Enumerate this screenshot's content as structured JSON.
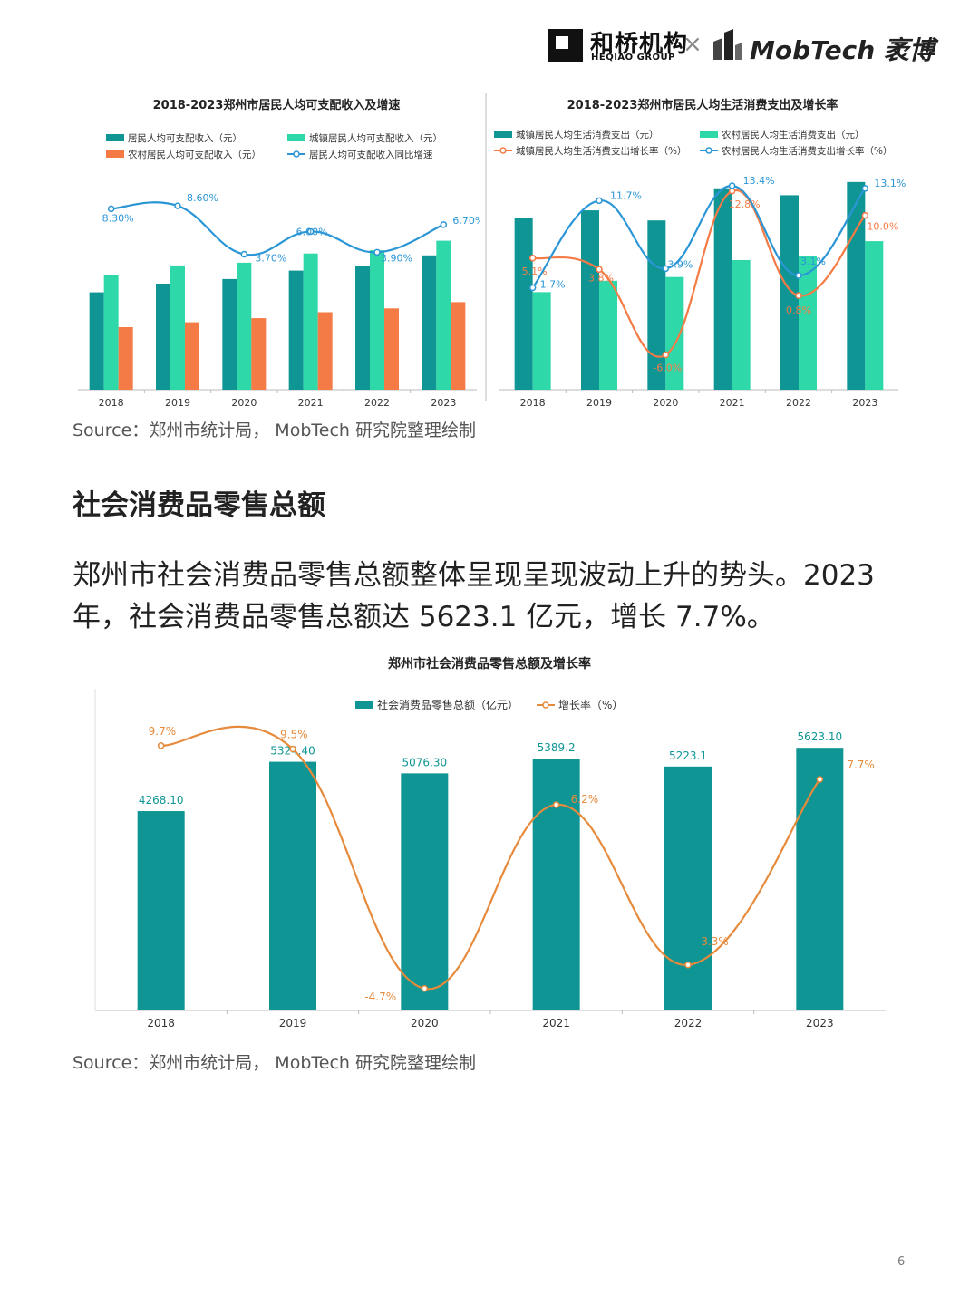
{
  "header": {
    "logo1_cn": "和桥机构",
    "logo1_en": "HEQIAO GROUP",
    "separator": "×",
    "logo2_text": "MobTech 袤博"
  },
  "source_note_1": "Source：郑州市统计局， MobTech 研究院整理绘制",
  "section_title": "社会消费品零售总额",
  "paragraph": "郑州市社会消费品零售总额整体呈现呈现波动上升的势头。2023年，社会消费品零售总额达 5623.1 亿元，增长 7.7%。",
  "source_note_2": "Source：郑州市统计局， MobTech 研究院整理绘制",
  "page_number": "6",
  "colors": {
    "teal": "#0e9594",
    "mint": "#2fd8a9",
    "orange": "#f47b45",
    "blue": "#2b96d6",
    "orange2": "#e68a3c"
  },
  "chart_data": [
    {
      "type": "bar",
      "title": "2018-2023郑州市居民人均可支配收入及增速",
      "categories": [
        "2018",
        "2019",
        "2020",
        "2021",
        "2022",
        "2023"
      ],
      "series": [
        {
          "name": "居民人均可支配收入（元）",
          "values": [
            35800,
            39000,
            40700,
            43800,
            45600,
            49400
          ]
        },
        {
          "name": "城镇居民人均可支配收入（元）",
          "values": [
            42200,
            45700,
            46700,
            50100,
            51300,
            54800
          ]
        },
        {
          "name": "农村居民人均可支配收入（元）",
          "values": [
            23000,
            24800,
            26300,
            28500,
            29900,
            32200
          ]
        },
        {
          "name": "居民人均可支配收入同比增速",
          "kind": "line",
          "values": [
            8.3,
            8.6,
            3.7,
            6.0,
            3.9,
            6.7
          ],
          "labels": [
            "8.30%",
            "8.60%",
            "3.70%",
            "6.00%",
            "3.90%",
            "6.70%"
          ]
        }
      ],
      "ylim": [
        0,
        80000
      ],
      "ylim_rate": [
        -10,
        12
      ],
      "legend_position": "top"
    },
    {
      "type": "bar",
      "title": "2018-2023郑州市居民人均生活消费支出及增长率",
      "categories": [
        "2018",
        "2019",
        "2020",
        "2021",
        "2022",
        "2023"
      ],
      "series": [
        {
          "name": "城镇居民人均生活消费支出（元）",
          "values": [
            27300,
            28500,
            26900,
            32000,
            30900,
            33000
          ]
        },
        {
          "name": "农村居民人均生活消费支出（元）",
          "values": [
            15500,
            17300,
            17900,
            20600,
            21300,
            23600
          ]
        },
        {
          "name": "城镇居民人均生活消费支出增长率（%）",
          "kind": "line",
          "values": [
            5.1,
            3.8,
            -6.0,
            12.8,
            0.8,
            10.0
          ],
          "labels": [
            "5.1%",
            "3.8%",
            "-6.0%",
            "12.8%",
            "0.8%",
            "10.0%"
          ]
        },
        {
          "name": "农村居民人均生活消费支出增长率（%）",
          "kind": "line",
          "values": [
            1.7,
            11.7,
            3.9,
            13.4,
            3.1,
            13.1
          ],
          "labels": [
            "1.7%",
            "11.7%",
            "3.9%",
            "13.4%",
            "3.1%",
            "13.1%"
          ]
        }
      ],
      "ylim": [
        0,
        36000
      ],
      "ylim_rate": [
        -10,
        16
      ],
      "legend_position": "top"
    },
    {
      "type": "bar",
      "title": "郑州市社会消费品零售总额及增长率",
      "categories": [
        "2018",
        "2019",
        "2020",
        "2021",
        "2022",
        "2023"
      ],
      "series": [
        {
          "name": "社会消费品零售总额（亿元）",
          "values": [
            4268.1,
            5324.4,
            5076.3,
            5389.2,
            5223.1,
            5623.1
          ],
          "labels": [
            "4268.10",
            "5324.40",
            "5076.30",
            "5389.2",
            "5223.1",
            "5623.10"
          ]
        },
        {
          "name": "增长率（%）",
          "kind": "line",
          "values": [
            9.7,
            9.5,
            -4.7,
            6.2,
            -3.3,
            7.7
          ],
          "labels": [
            "9.7%",
            "9.5%",
            "-4.7%",
            "6.2%",
            "-3.3%",
            "7.7%"
          ]
        }
      ],
      "ylim": [
        0,
        6500
      ],
      "ylim_rate": [
        -6,
        12
      ],
      "legend_position": "top"
    }
  ]
}
